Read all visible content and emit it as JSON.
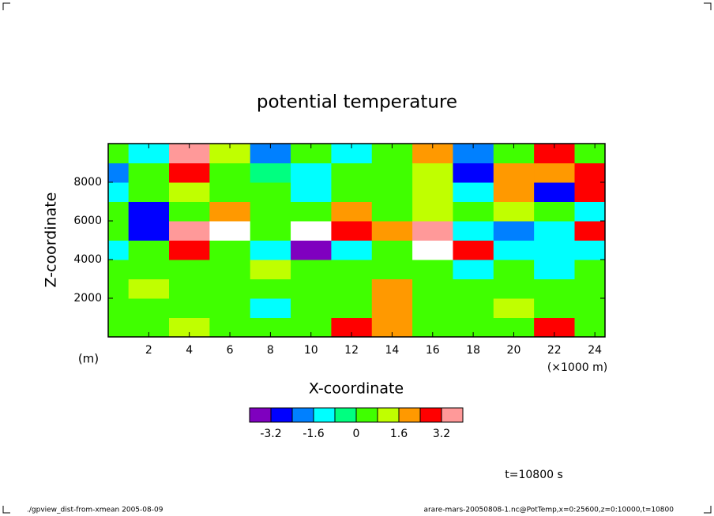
{
  "chart_data": {
    "type": "contour",
    "title": "potential temperature",
    "x_label": "X-coordinate",
    "y_label": "Z-coordinate",
    "y_unit": "(m)",
    "x_unit": "(×1000 m)",
    "xlim": [
      0,
      24.5
    ],
    "ylim": [
      0,
      10000
    ],
    "xticks": [
      2,
      4,
      6,
      8,
      10,
      12,
      14,
      16,
      18,
      20,
      22,
      24
    ],
    "yticks": [
      2000,
      4000,
      6000,
      8000
    ],
    "x": [
      0,
      2,
      4,
      6,
      8,
      10,
      12,
      14,
      16,
      18,
      20,
      22,
      24
    ],
    "y": [
      500,
      1500,
      2500,
      3500,
      4500,
      5500,
      6500,
      7500,
      8500,
      9500
    ],
    "z": [
      [
        0.4,
        0.4,
        1.2,
        0.4,
        0.4,
        0.4,
        2.8,
        2,
        0.4,
        0.4,
        0.4,
        2.8,
        0.4
      ],
      [
        0.4,
        0.4,
        0.4,
        0.4,
        -1.2,
        0.4,
        0.4,
        2,
        0.4,
        0.4,
        1.2,
        0.4,
        0.4
      ],
      [
        0.4,
        1.2,
        0.4,
        0.4,
        0.4,
        0.4,
        0.4,
        2,
        0.4,
        0.4,
        0.4,
        0.4,
        0.4
      ],
      [
        0.4,
        0.4,
        0.4,
        0.4,
        1.2,
        0.4,
        0.4,
        0.4,
        0.4,
        -1.2,
        0.4,
        -1.2,
        0.4
      ],
      [
        -1.2,
        0.4,
        2.8,
        0.4,
        -1.2,
        -3.6,
        -1.2,
        0.4,
        4.5,
        2.8,
        -1.2,
        -1.2,
        -1.2
      ],
      [
        0.4,
        -2.8,
        3.6,
        4.5,
        0.4,
        4.5,
        2.8,
        2,
        3.6,
        -1.2,
        -2,
        -1.2,
        2.8
      ],
      [
        0.4,
        -2.8,
        0.4,
        2,
        0.4,
        0.4,
        2,
        0.4,
        1.2,
        0.4,
        1.2,
        0.4,
        -1.2
      ],
      [
        -1.2,
        0.4,
        1.2,
        0.4,
        0.4,
        -1.2,
        0.4,
        0.4,
        1.2,
        -1.2,
        2,
        -2.8,
        2.8
      ],
      [
        -2,
        0.4,
        2.8,
        0.4,
        -0.4,
        -1.2,
        0.4,
        0.4,
        1.2,
        -2.8,
        2,
        2,
        2.8
      ],
      [
        0.4,
        -1.2,
        3.6,
        1.2,
        -2,
        0.4,
        -1.2,
        0.4,
        2,
        -2,
        0.4,
        2.8,
        0.4
      ]
    ],
    "levels": [
      -4,
      -3.2,
      -2.4,
      -1.6,
      -0.8,
      0,
      0.8,
      1.6,
      2.4,
      3.2,
      4
    ],
    "colors": [
      "#7f00bf",
      "#0000ff",
      "#0080ff",
      "#00ffff",
      "#00ff80",
      "#40ff00",
      "#c0ff00",
      "#ff9900",
      "#ff0000",
      "#ff9999"
    ],
    "colorbar_ticks": [
      -3.2,
      -1.6,
      0,
      1.6,
      3.2
    ],
    "time_label": "t=10800 s",
    "footer_left": "./gpview_dist-from-xmean  2005-08-09",
    "footer_right": "arare-mars-20050808-1.nc@PotTemp,x=0:25600,z=0:10000,t=10800"
  }
}
